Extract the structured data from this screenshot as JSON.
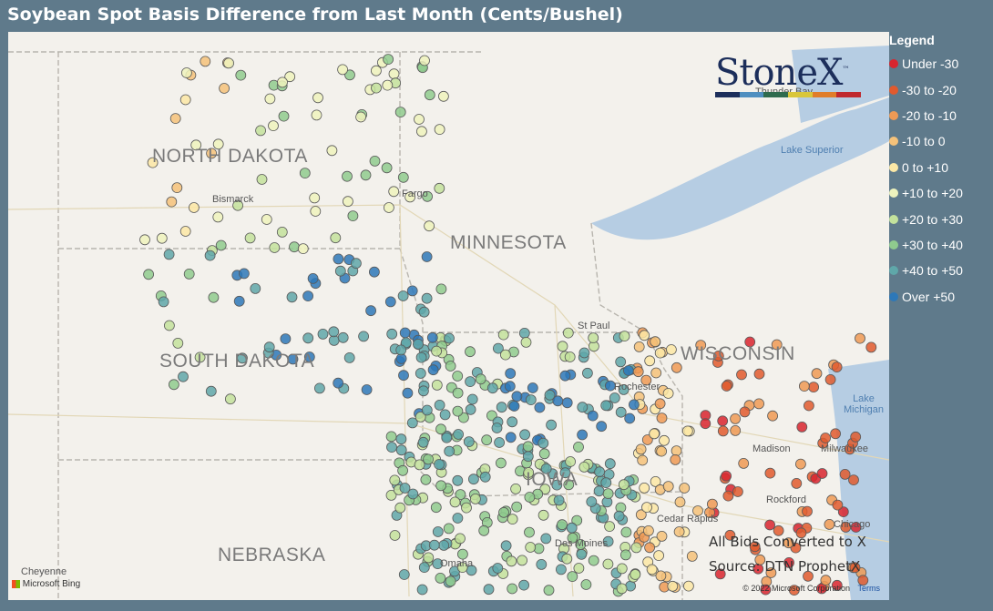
{
  "title": "Soybean Spot Basis Difference from Last Month (Cents/Bushel)",
  "legend": {
    "title": "Legend",
    "items": [
      {
        "label": "Under -30",
        "color": "#d8252f"
      },
      {
        "label": "-30 to -20",
        "color": "#e15a2e"
      },
      {
        "label": "-20 to -10",
        "color": "#ee9a55"
      },
      {
        "label": "-10 to 0",
        "color": "#f5c27a"
      },
      {
        "label": "0 to +10",
        "color": "#fbe8a6"
      },
      {
        "label": "+10 to +20",
        "color": "#eef3bd"
      },
      {
        "label": "+20 to +30",
        "color": "#c3e29c"
      },
      {
        "label": "+30 to +40",
        "color": "#8fcb8e"
      },
      {
        "label": "+40 to +50",
        "color": "#5fa7a9"
      },
      {
        "label": "Over +50",
        "color": "#2d78b8"
      }
    ]
  },
  "logo": {
    "text": "StoneX",
    "tm": "™"
  },
  "map_labels": {
    "states": [
      "NORTH DAKOTA",
      "MINNESOTA",
      "SOUTH DAKOTA",
      "WISCONSIN",
      "NEBRASKA",
      "IOWA"
    ],
    "cities": [
      "Bismarck",
      "Fargo",
      "St Paul",
      "Rochester",
      "Madison",
      "Milwaukee",
      "Rockford",
      "Chicago",
      "Omaha",
      "Des Moines",
      "Cedar Rapids",
      "Cheyenne",
      "Thunder Bay"
    ],
    "water": [
      "Lake Superior",
      "Lake Michigan"
    ]
  },
  "notes": {
    "line1": "All Bids Converted to X",
    "line2": "Source: DTN ProphetX"
  },
  "attribution": {
    "bing": "Microsoft Bing",
    "copyright": "© 2022 Microsoft Corporation",
    "terms": "Terms"
  }
}
